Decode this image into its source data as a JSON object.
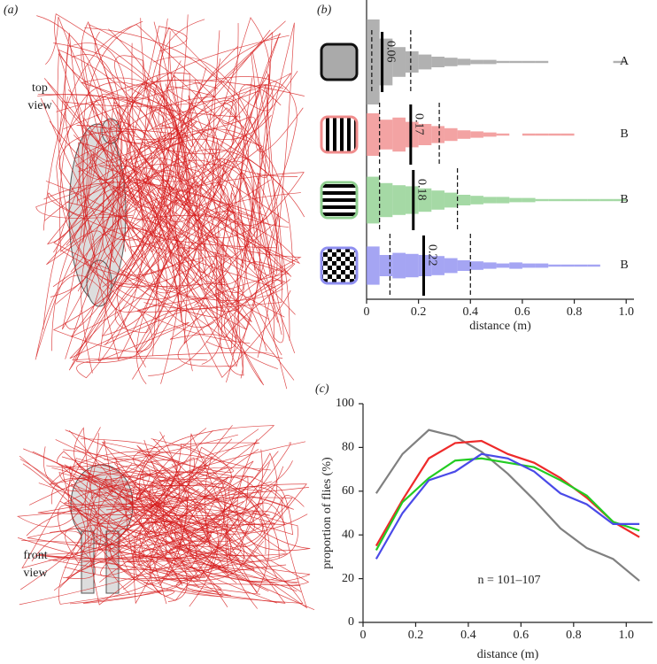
{
  "panel_a": {
    "label": "(a)",
    "top_view": [
      "top",
      "view"
    ],
    "front_view": [
      "front",
      "view"
    ]
  },
  "chart_data": [
    {
      "type": "histogram",
      "label": "(b)",
      "xlabel": "distance (m)",
      "xlim": [
        0,
        1.03
      ],
      "xticks": [
        0,
        0.2,
        0.4,
        0.6,
        0.8,
        {
          "value": 1,
          "label": "1.0"
        }
      ],
      "bins": [
        0,
        0.05,
        0.1,
        0.15,
        0.2,
        0.25,
        0.3,
        0.35,
        0.4,
        0.45,
        0.5,
        0.55,
        0.6,
        0.65,
        0.7,
        0.75,
        0.8,
        0.85,
        0.9,
        0.95,
        1.0
      ],
      "series": [
        {
          "color": "#9e9e9e",
          "counts": [
            40,
            22,
            14,
            10,
            7,
            5,
            4,
            3,
            2,
            2,
            1,
            1,
            1,
            1,
            0,
            0,
            0,
            0,
            0,
            1
          ],
          "median": 0.06,
          "q1": 0.02,
          "q3": 0.17,
          "letter": "A"
        },
        {
          "color": "#f08c8c",
          "counts": [
            20,
            14,
            16,
            12,
            10,
            8,
            6,
            4,
            3,
            2,
            1,
            0,
            1,
            1,
            1,
            1,
            0,
            0,
            0,
            0
          ],
          "median": 0.17,
          "q1": 0.05,
          "q3": 0.28,
          "letter": "B"
        },
        {
          "color": "#8fcf8f",
          "counts": [
            22,
            16,
            14,
            13,
            11,
            9,
            7,
            5,
            4,
            3,
            3,
            2,
            2,
            1,
            1,
            1,
            1,
            1,
            1,
            1
          ],
          "median": 0.18,
          "q1": 0.05,
          "q3": 0.35,
          "letter": "B"
        },
        {
          "color": "#8f8ff0",
          "counts": [
            18,
            10,
            12,
            11,
            10,
            9,
            7,
            5,
            4,
            3,
            2,
            3,
            2,
            2,
            1,
            1,
            1,
            1,
            0,
            0
          ],
          "median": 0.22,
          "q1": 0.09,
          "q3": 0.4,
          "letter": "B"
        }
      ]
    },
    {
      "type": "line",
      "label": "(c)",
      "xlabel": "distance (m)",
      "ylabel": "proportion of flies (%)",
      "annotation": "n = 101–107",
      "x": [
        0.05,
        0.15,
        0.25,
        0.35,
        0.45,
        0.55,
        0.65,
        0.75,
        0.85,
        0.95,
        1.05
      ],
      "xlim": [
        0,
        1.1
      ],
      "ylim": [
        0,
        100
      ],
      "xticks": [
        0,
        0.2,
        0.4,
        0.6,
        0.8,
        {
          "value": 1,
          "label": "1.0"
        }
      ],
      "yticks": [
        0,
        20,
        40,
        60,
        80,
        100
      ],
      "series": [
        {
          "color": "#808080",
          "values": [
            59,
            77,
            88,
            85,
            78,
            68,
            56,
            43,
            34,
            29,
            19
          ]
        },
        {
          "color": "#ee2a2a",
          "values": [
            35,
            56,
            75,
            82,
            83,
            77,
            73,
            66,
            57,
            46,
            39
          ]
        },
        {
          "color": "#22cc22",
          "values": [
            33,
            55,
            66,
            74,
            75,
            73,
            71,
            65,
            58,
            46,
            42
          ]
        },
        {
          "color": "#4a4ae8",
          "values": [
            29,
            50,
            65,
            69,
            77,
            75,
            69,
            59,
            54,
            45,
            45
          ]
        }
      ]
    }
  ]
}
